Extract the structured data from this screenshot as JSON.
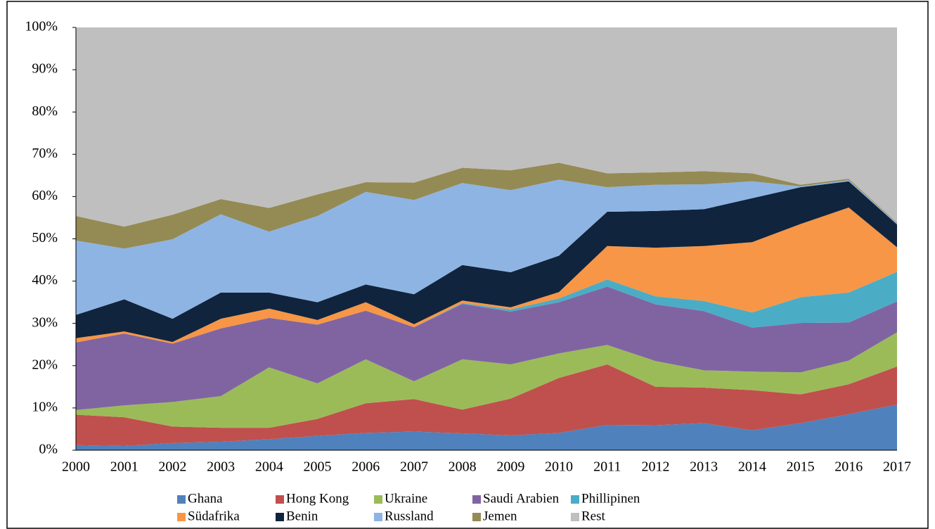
{
  "chart_data": {
    "type": "area",
    "stacked": true,
    "legend": "bottom",
    "categories": [
      "2000",
      "2001",
      "2002",
      "2003",
      "2004",
      "2005",
      "2006",
      "2007",
      "2008",
      "2009",
      "2010",
      "2011",
      "2012",
      "2013",
      "2014",
      "2015",
      "2016",
      "2017"
    ],
    "ylim": [
      0,
      100
    ],
    "yticks": [
      {
        "value": 0,
        "label": "0%"
      },
      {
        "value": 10,
        "label": "10%"
      },
      {
        "value": 20,
        "label": "20%"
      },
      {
        "value": 30,
        "label": "30%"
      },
      {
        "value": 40,
        "label": "40%"
      },
      {
        "value": 50,
        "label": "50%"
      },
      {
        "value": 60,
        "label": "60%"
      },
      {
        "value": 70,
        "label": "70%"
      },
      {
        "value": 80,
        "label": "80%"
      },
      {
        "value": 90,
        "label": "90%"
      },
      {
        "value": 100,
        "label": "100%"
      }
    ],
    "series": [
      {
        "name": "Ghana",
        "color": "#4f81bd",
        "values": [
          1.2,
          1.0,
          1.7,
          2.0,
          2.6,
          3.4,
          4.1,
          4.4,
          4.0,
          3.5,
          4.1,
          6.0,
          5.9,
          6.4,
          4.7,
          6.4,
          8.5,
          10.8
        ]
      },
      {
        "name": "Hong Kong",
        "color": "#c0504d",
        "values": [
          7.2,
          6.8,
          3.9,
          3.3,
          2.7,
          4.0,
          7.0,
          7.7,
          5.6,
          8.7,
          13.0,
          14.3,
          9.1,
          8.4,
          9.5,
          6.8,
          7.1,
          9.0
        ]
      },
      {
        "name": "Ukraine",
        "color": "#9bbb59",
        "values": [
          1.1,
          2.8,
          5.8,
          7.5,
          14.3,
          8.4,
          10.4,
          4.2,
          11.9,
          8.1,
          5.8,
          4.6,
          6.1,
          4.1,
          4.4,
          5.2,
          5.6,
          8.1
        ]
      },
      {
        "name": "Saudi Arabien",
        "color": "#8064a2",
        "values": [
          16.0,
          17.0,
          13.8,
          16.0,
          11.7,
          13.9,
          11.5,
          12.8,
          13.1,
          12.5,
          12.1,
          13.8,
          13.4,
          14.0,
          10.4,
          11.7,
          9.0,
          7.3
        ]
      },
      {
        "name": "Phillipinen",
        "color": "#4bacc6",
        "values": [
          0,
          0,
          0,
          0,
          0,
          0,
          0,
          0,
          0.2,
          0.5,
          0.9,
          1.7,
          1.9,
          2.4,
          3.6,
          6.1,
          7.1,
          7.0
        ]
      },
      {
        "name": "Südafrika",
        "color": "#f79646",
        "values": [
          1.0,
          0.5,
          0.4,
          2.3,
          2.2,
          1.1,
          2.0,
          0.7,
          0.6,
          0.5,
          1.5,
          7.9,
          11.5,
          13.0,
          16.6,
          17.3,
          20.1,
          5.8
        ]
      },
      {
        "name": "Benin",
        "color": "#10243e",
        "values": [
          5.5,
          7.6,
          5.5,
          6.2,
          3.8,
          4.2,
          4.2,
          7.1,
          8.4,
          8.3,
          8.6,
          8.1,
          8.7,
          8.7,
          10.4,
          8.7,
          6.2,
          5.4
        ]
      },
      {
        "name": "Russland",
        "color": "#8eb4e3",
        "values": [
          17.6,
          12.0,
          18.8,
          18.5,
          14.4,
          20.4,
          21.9,
          22.3,
          19.4,
          19.4,
          18.0,
          5.8,
          6.2,
          5.9,
          4.0,
          0.2,
          0.3,
          0.2
        ]
      },
      {
        "name": "Jemen",
        "color": "#948a54",
        "values": [
          5.8,
          5.2,
          5.8,
          3.6,
          5.6,
          5.1,
          2.3,
          4.1,
          3.6,
          4.7,
          4.0,
          3.3,
          2.9,
          3.1,
          1.9,
          0.4,
          0.3,
          0.2
        ]
      },
      {
        "name": "Rest",
        "color": "#bfbfbf",
        "values": [
          44.6,
          47.1,
          44.3,
          40.6,
          42.7,
          39.5,
          36.6,
          36.7,
          33.2,
          33.8,
          32.0,
          34.5,
          34.3,
          34.0,
          34.5,
          37.2,
          35.8,
          46.2
        ]
      }
    ]
  }
}
